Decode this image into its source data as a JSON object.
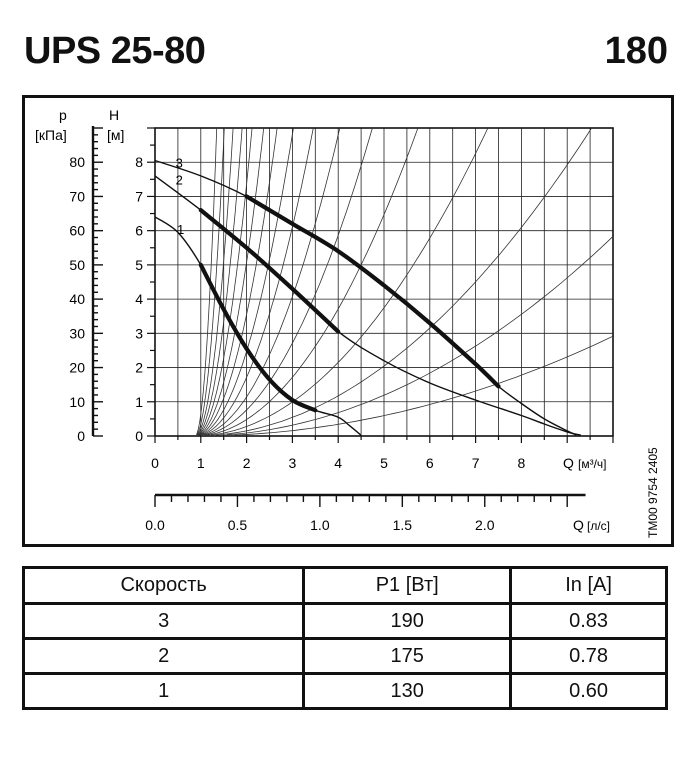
{
  "header": {
    "model": "UPS 25-80",
    "length": "180"
  },
  "chart_data": {
    "type": "line",
    "y_left": {
      "label": "p",
      "unit": "[кПа]",
      "ticks": [
        0,
        10,
        20,
        30,
        40,
        50,
        60,
        70,
        80
      ],
      "range": [
        0,
        90
      ]
    },
    "y_right": {
      "label": "H",
      "unit": "[м]",
      "ticks": [
        0,
        1,
        2,
        3,
        4,
        5,
        6,
        7,
        8
      ],
      "range": [
        0,
        9
      ]
    },
    "x": {
      "label": "Q",
      "unit": "[м³/ч]",
      "ticks": [
        0,
        1,
        2,
        3,
        4,
        5,
        6,
        7,
        8
      ],
      "range": [
        0,
        10
      ]
    },
    "x2": {
      "label": "Q",
      "unit": "[л/с]",
      "ticks": [
        "0.0",
        "0.5",
        "1.0",
        "1.5",
        "2.0"
      ],
      "range": [
        0,
        2.778
      ]
    },
    "grid": true,
    "side_code": "TM00 9754 2405",
    "series": [
      {
        "name": "3",
        "points": [
          [
            0,
            8.05
          ],
          [
            1,
            7.6
          ],
          [
            2,
            7.0
          ],
          [
            3,
            6.2
          ],
          [
            4,
            5.4
          ],
          [
            5,
            4.4
          ],
          [
            6,
            3.3
          ],
          [
            7,
            2.1
          ],
          [
            7.5,
            1.45
          ],
          [
            8,
            0.95
          ],
          [
            8.5,
            0.5
          ],
          [
            9,
            0.15
          ],
          [
            9.2,
            0.03
          ]
        ],
        "thick_range": [
          2,
          7.5
        ]
      },
      {
        "name": "2",
        "points": [
          [
            0,
            7.6
          ],
          [
            1,
            6.6
          ],
          [
            2,
            5.5
          ],
          [
            3,
            4.3
          ],
          [
            4,
            3.05
          ],
          [
            5,
            2.2
          ],
          [
            6,
            1.55
          ],
          [
            7,
            1.05
          ],
          [
            8,
            0.6
          ],
          [
            8.5,
            0.35
          ],
          [
            9,
            0.12
          ],
          [
            9.3,
            0.02
          ]
        ],
        "thick_range": [
          1,
          4.5
        ]
      },
      {
        "name": "1",
        "points": [
          [
            0,
            6.4
          ],
          [
            0.5,
            5.95
          ],
          [
            1,
            5.0
          ],
          [
            1.5,
            3.7
          ],
          [
            2,
            2.55
          ],
          [
            2.5,
            1.65
          ],
          [
            3,
            1.05
          ],
          [
            3.5,
            0.75
          ],
          [
            4,
            0.55
          ],
          [
            4.25,
            0.3
          ],
          [
            4.5,
            0.02
          ]
        ],
        "thick_range": [
          0.8,
          3.9
        ]
      }
    ]
  },
  "table": {
    "headers": [
      "Скорость",
      "P1 [Вт]",
      "In [A]"
    ],
    "rows": [
      [
        "3",
        "190",
        "0.83"
      ],
      [
        "2",
        "175",
        "0.78"
      ],
      [
        "1",
        "130",
        "0.60"
      ]
    ]
  }
}
